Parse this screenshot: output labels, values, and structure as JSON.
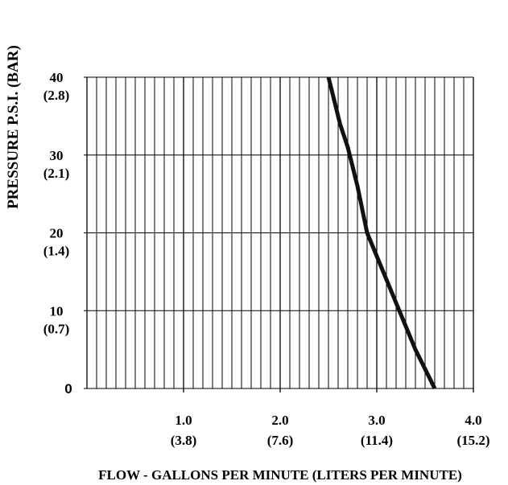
{
  "chart_data": {
    "type": "line",
    "title": "",
    "xlabel": "FLOW - GALLONS PER MINUTE  (LITERS PER MINUTE)",
    "ylabel": "PRESSURE P.S.I. (BAR)",
    "xlim": [
      0,
      4.0
    ],
    "ylim": [
      0,
      40
    ],
    "grid": true,
    "x_ticks": [
      {
        "value": 1.0,
        "label": "1.0",
        "sublabel": "(3.8)"
      },
      {
        "value": 2.0,
        "label": "2.0",
        "sublabel": "(7.6)"
      },
      {
        "value": 3.0,
        "label": "3.0",
        "sublabel": "(11.4)"
      },
      {
        "value": 4.0,
        "label": "4.0",
        "sublabel": "(15.2)"
      }
    ],
    "y_ticks": [
      {
        "value": 0,
        "label": "0",
        "sublabel": ""
      },
      {
        "value": 10,
        "label": "10",
        "sublabel": "(0.7)"
      },
      {
        "value": 20,
        "label": "20",
        "sublabel": "(1.4)"
      },
      {
        "value": 30,
        "label": "30",
        "sublabel": "(2.1)"
      },
      {
        "value": 40,
        "label": "40",
        "sublabel": "(2.8)"
      }
    ],
    "series": [
      {
        "x": [
          2.5,
          2.62,
          2.7,
          2.8,
          2.9,
          3.0,
          3.2,
          3.4,
          3.6
        ],
        "y": [
          40,
          34,
          31,
          26,
          20,
          17,
          11,
          5,
          0
        ],
        "color": "#111111"
      }
    ]
  }
}
